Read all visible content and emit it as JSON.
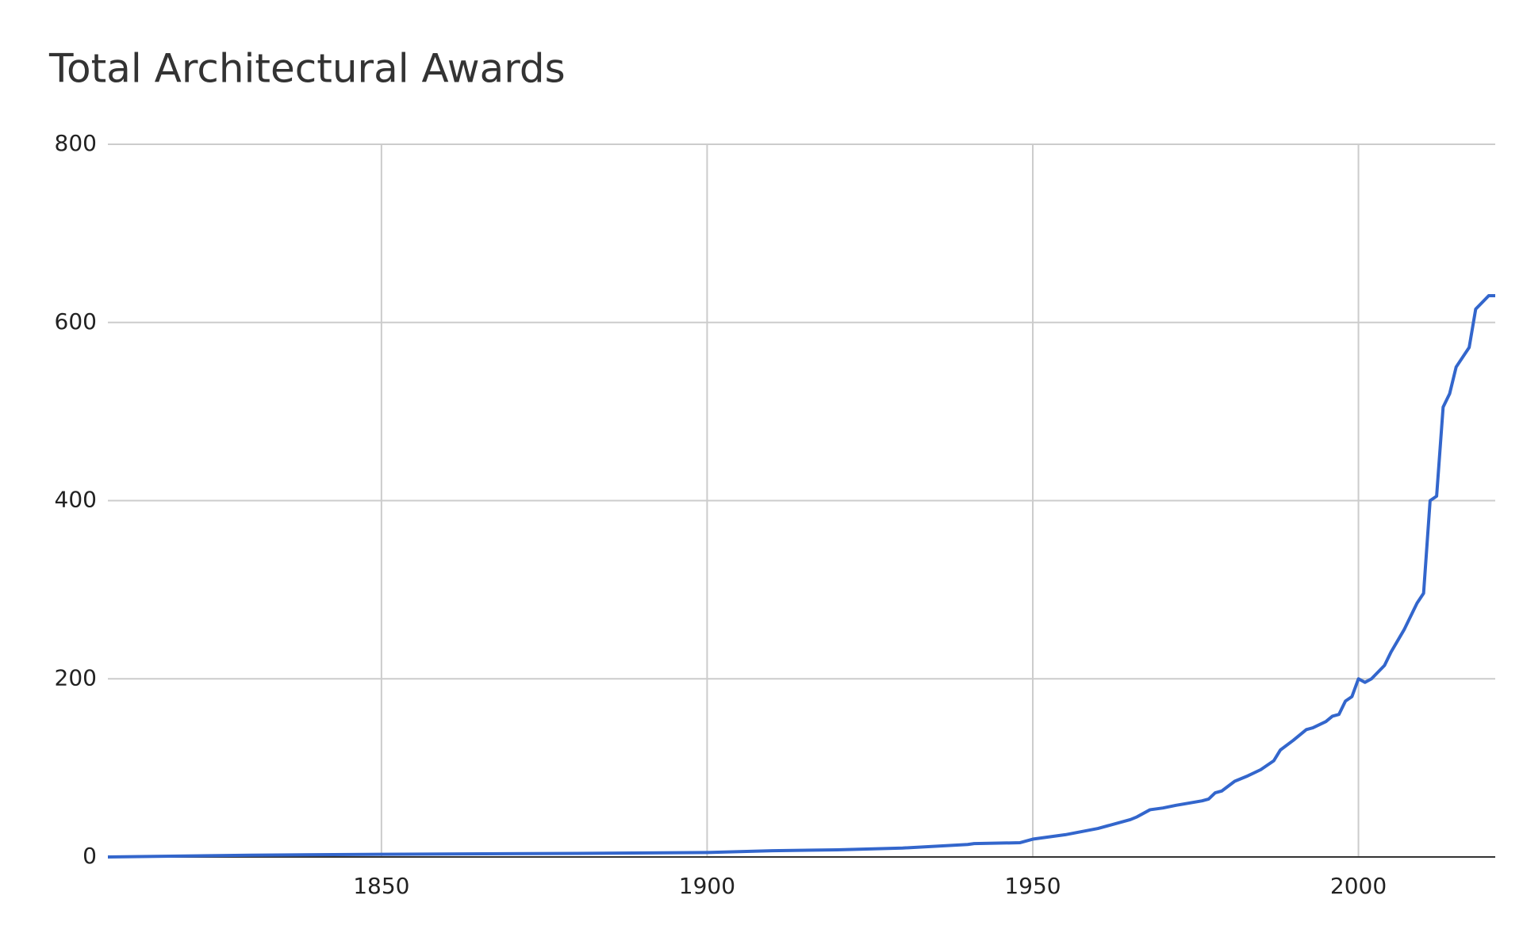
{
  "chart_data": {
    "type": "line",
    "title": "Total Architectural Awards",
    "series": [
      {
        "name": "Total Architectural Awards",
        "color": "#3366cc",
        "x": [
          1808,
          1830,
          1850,
          1880,
          1900,
          1905,
          1910,
          1920,
          1930,
          1940,
          1941,
          1948,
          1950,
          1955,
          1960,
          1965,
          1966,
          1968,
          1970,
          1972,
          1976,
          1977,
          1978,
          1979,
          1981,
          1983,
          1985,
          1987,
          1988,
          1990,
          1992,
          1993,
          1995,
          1996,
          1997,
          1998,
          1999,
          2000,
          2001,
          2002,
          2004,
          2005,
          2007,
          2008,
          2009,
          2010,
          2011,
          2012,
          2013,
          2014,
          2015,
          2017,
          2018,
          2020,
          2021
        ],
        "values": [
          0,
          2,
          3,
          4,
          5,
          6,
          7,
          8,
          10,
          14,
          15,
          16,
          20,
          25,
          32,
          42,
          45,
          53,
          55,
          58,
          63,
          65,
          72,
          74,
          85,
          91,
          98,
          108,
          120,
          131,
          143,
          145,
          152,
          158,
          160,
          175,
          180,
          200,
          196,
          200,
          215,
          230,
          255,
          270,
          285,
          296,
          400,
          405,
          505,
          520,
          550,
          572,
          615,
          630,
          630
        ]
      }
    ],
    "xlim": [
      1808,
      2021
    ],
    "xticks": [
      1850,
      1900,
      1950,
      2000
    ],
    "ylim": [
      0,
      800
    ],
    "yticks": [
      0,
      200,
      400,
      600,
      800
    ],
    "grid": true
  }
}
